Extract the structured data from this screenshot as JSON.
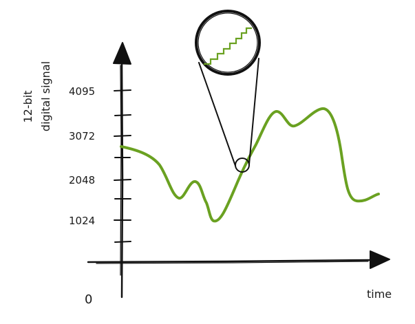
{
  "diagram": {
    "y_axis_title_line1": "12-bit",
    "y_axis_title_line2": "digital signal",
    "x_axis_title": "time",
    "origin_label": "0",
    "tick_labels": [
      "4095",
      "3072",
      "2048",
      "1024"
    ],
    "colors": {
      "signal": "#6aa121",
      "axis": "#111111"
    },
    "magnifier_icon": "zoom-lens-icon"
  }
}
